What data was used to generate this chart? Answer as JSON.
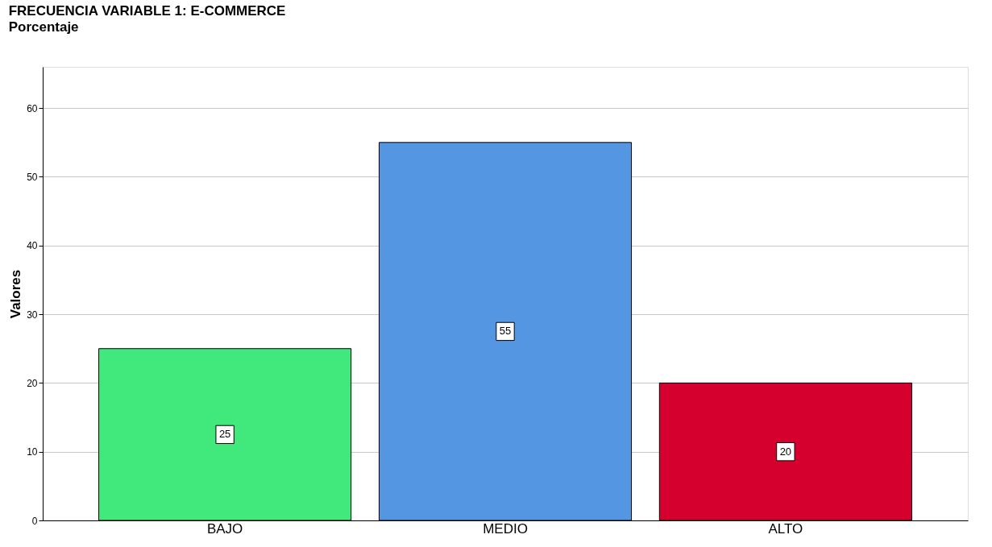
{
  "chart_data": {
    "type": "bar",
    "title": "FRECUENCIA VARIABLE 1: E-COMMERCE",
    "subtitle": "Porcentaje",
    "ylabel": "Valores",
    "categories": [
      "BAJO",
      "MEDIO",
      "ALTO"
    ],
    "values": [
      25,
      55,
      20
    ],
    "colors": [
      "#41e97c",
      "#5596e3",
      "#d6002f"
    ],
    "ylim": [
      0,
      66
    ],
    "yticks": [
      0,
      10,
      20,
      30,
      40,
      50,
      60
    ],
    "grid": "y",
    "data_labels": true
  }
}
